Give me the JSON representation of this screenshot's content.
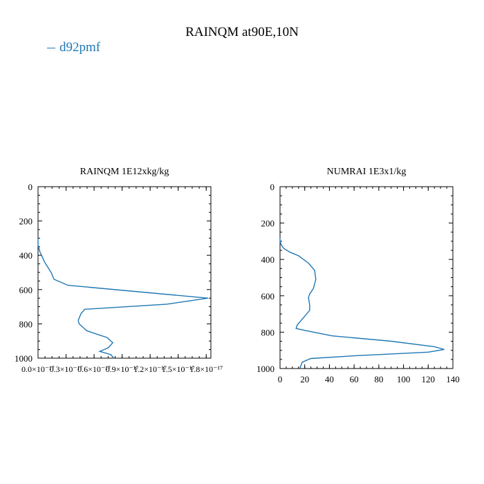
{
  "figure": {
    "title": "RAINQM at90E,10N"
  },
  "legend": {
    "label": "d92pmf",
    "color": "#1f77b4"
  },
  "chart_data": [
    {
      "type": "line",
      "title": "RAINQM  1E12xkg/kg",
      "xlabel": "",
      "ylabel": "",
      "xlim": [
        0,
        1.85e-17
      ],
      "ylim": [
        1000,
        0
      ],
      "y_inverted": true,
      "x_ticks": [
        0,
        3e-18,
        6e-18,
        9e-18,
        1.2e-17,
        1.5e-17,
        1.8e-17
      ],
      "x_tick_labels": [
        "0.0×10⁻¹⁷",
        "0.3×10⁻¹⁷",
        "0.6×10⁻¹⁷",
        "0.9×10⁻¹⁷",
        "1.2×10⁻¹⁷",
        "1.5×10⁻¹⁷",
        "1.8×10⁻¹⁷"
      ],
      "y_ticks": [
        0,
        200,
        400,
        600,
        800,
        1000
      ],
      "y_tick_labels": [
        "0",
        "200",
        "400",
        "600",
        "800",
        "1000"
      ],
      "series": [
        {
          "name": "d92pmf",
          "color": "#1f77b4",
          "x": [
            0,
            0,
            2e-19,
            7e-19,
            1.4e-18,
            1.7e-18,
            3.2e-18,
            1.82e-17,
            1.38e-17,
            5e-18,
            4.6e-18,
            4.3e-18,
            4.4e-18,
            5.2e-18,
            6.3e-18,
            7.4e-18,
            8e-18,
            7.5e-18,
            6.6e-18,
            7.8e-18,
            8.1e-18
          ],
          "y": [
            300,
            340,
            380,
            440,
            500,
            540,
            575,
            650,
            685,
            715,
            740,
            780,
            800,
            840,
            860,
            880,
            910,
            940,
            960,
            980,
            1000
          ]
        }
      ]
    },
    {
      "type": "line",
      "title": "NUMRAI  1E3x1/kg",
      "xlabel": "",
      "ylabel": "",
      "xlim": [
        0,
        140
      ],
      "ylim": [
        1000,
        0
      ],
      "y_inverted": true,
      "x_ticks": [
        0,
        20,
        40,
        60,
        80,
        100,
        120,
        140
      ],
      "x_tick_labels": [
        "0",
        "20",
        "40",
        "60",
        "80",
        "100",
        "120",
        "140"
      ],
      "y_ticks": [
        0,
        200,
        400,
        600,
        800,
        1000
      ],
      "y_tick_labels": [
        "0",
        "200",
        "400",
        "600",
        "800",
        "1000"
      ],
      "series": [
        {
          "name": "d92pmf",
          "color": "#1f77b4",
          "x": [
            0,
            0,
            1,
            3,
            8,
            15,
            23,
            28,
            29,
            27,
            24,
            23,
            24,
            24,
            19,
            14,
            13,
            20,
            42,
            90,
            125,
            133,
            120,
            60,
            25,
            18,
            16
          ],
          "y": [
            280,
            300,
            320,
            340,
            360,
            380,
            420,
            460,
            510,
            560,
            590,
            610,
            650,
            680,
            720,
            760,
            780,
            790,
            820,
            850,
            880,
            895,
            910,
            930,
            945,
            965,
            1000
          ]
        }
      ]
    }
  ]
}
